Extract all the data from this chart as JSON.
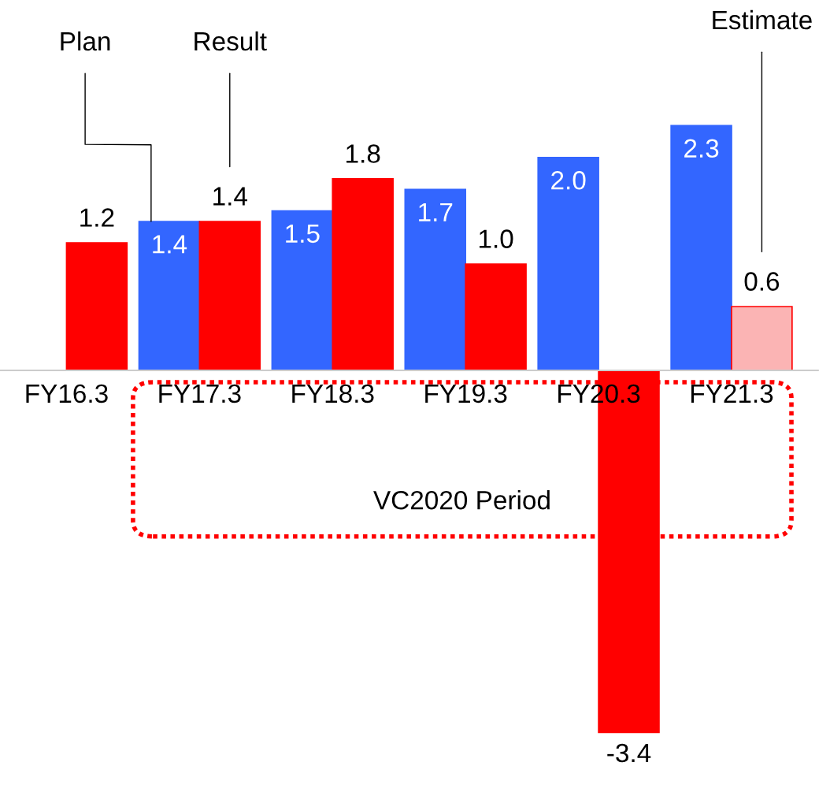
{
  "chart_data": {
    "type": "bar",
    "categories": [
      "FY16.3",
      "FY17.3",
      "FY18.3",
      "FY19.3",
      "FY20.3",
      "FY21.3"
    ],
    "series": [
      {
        "color": "#3366ff",
        "values": [
          null,
          1.4,
          1.5,
          1.7,
          2.0,
          2.3
        ],
        "value_labels": [
          null,
          "1.4",
          "1.5",
          "1.7",
          "2.0",
          "2.3"
        ]
      },
      {
        "color": "#ff0000",
        "colors": [
          "#ff0000",
          "#ff0000",
          "#ff0000",
          "#ff0000",
          "#ff0000",
          "#fbb4b4"
        ],
        "values": [
          1.2,
          1.4,
          1.8,
          1.0,
          -3.4,
          0.6
        ],
        "value_labels": [
          "1.2",
          "1.4",
          "1.8",
          "1.0",
          "-3.4",
          "0.6"
        ]
      }
    ],
    "ylim": [
      -3.96,
      3.48
    ],
    "grid": false,
    "legend": false,
    "annotations": [
      "Plan",
      "Result",
      "Estimate",
      "VC2020 Period"
    ]
  }
}
